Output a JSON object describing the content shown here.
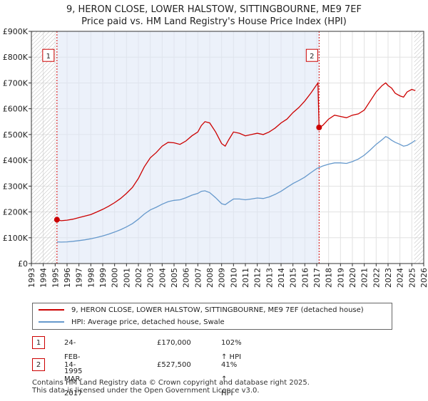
{
  "title_line1": "9, HERON CLOSE, LOWER HALSTOW, SITTINGBOURNE, ME9 7EF",
  "title_line2": "Price paid vs. HM Land Registry's House Price Index (HPI)",
  "colors": {
    "price": "#cc0000",
    "hpi": "#6699cc",
    "shade": "#dde6f5",
    "marker": "#cc0000"
  },
  "legend": {
    "price_label": "9, HERON CLOSE, LOWER HALSTOW, SITTINGBOURNE, ME9 7EF (detached house)",
    "hpi_label": "HPI: Average price, detached house, Swale"
  },
  "sales": [
    {
      "num": "1",
      "date": "24-FEB-1995",
      "price": "£170,000",
      "hpi": "102% ↑ HPI"
    },
    {
      "num": "2",
      "date": "14-MAR-2017",
      "price": "£527,500",
      "hpi": "41% ↑ HPI"
    }
  ],
  "footer_line1": "Contains HM Land Registry data © Crown copyright and database right 2025.",
  "footer_line2": "This data is licensed under the Open Government Licence v3.0.",
  "chart_data": {
    "type": "line",
    "title": "Price paid vs. HM Land Registry's House Price Index (HPI)",
    "xlim": [
      1993,
      2026
    ],
    "ylim": [
      0,
      900000
    ],
    "x_ticks": [
      "1993",
      "1994",
      "1995",
      "1996",
      "1997",
      "1998",
      "1999",
      "2000",
      "2001",
      "2002",
      "2003",
      "2004",
      "2005",
      "2006",
      "2007",
      "2008",
      "2009",
      "2010",
      "2011",
      "2012",
      "2013",
      "2014",
      "2015",
      "2016",
      "2017",
      "2018",
      "2019",
      "2020",
      "2021",
      "2022",
      "2023",
      "2024",
      "2025",
      "2026"
    ],
    "y_ticks": [
      0,
      100000,
      200000,
      300000,
      400000,
      500000,
      600000,
      700000,
      800000,
      900000
    ],
    "y_tick_labels": [
      "£0",
      "£100K",
      "£200K",
      "£300K",
      "£400K",
      "£500K",
      "£600K",
      "£700K",
      "£800K",
      "£900K"
    ],
    "sale_markers": [
      {
        "label": "1",
        "x": 1995.15,
        "y": 170000
      },
      {
        "label": "2",
        "x": 2017.2,
        "y": 527500
      }
    ],
    "series": [
      {
        "name": "9, HERON CLOSE, LOWER HALSTOW, SITTINGBOURNE, ME9 7EF (detached house)",
        "x": [
          1995.15,
          1995.5,
          1996,
          1996.5,
          1997,
          1997.5,
          1998,
          1998.5,
          1999,
          1999.5,
          2000,
          2000.5,
          2001,
          2001.5,
          2002,
          2002.5,
          2003,
          2003.5,
          2004,
          2004.5,
          2005,
          2005.5,
          2006,
          2006.5,
          2007,
          2007.3,
          2007.6,
          2008,
          2008.5,
          2009,
          2009.3,
          2009.6,
          2010,
          2010.5,
          2011,
          2011.5,
          2012,
          2012.5,
          2013,
          2013.5,
          2014,
          2014.5,
          2015,
          2015.5,
          2016,
          2016.5,
          2017.1,
          2017.2,
          2017.5,
          2018,
          2018.5,
          2019,
          2019.5,
          2020,
          2020.5,
          2021,
          2021.5,
          2022,
          2022.5,
          2022.8,
          2023,
          2023.3,
          2023.6,
          2024,
          2024.3,
          2024.6,
          2025,
          2025.3
        ],
        "values": [
          170000,
          166000,
          168000,
          172000,
          178000,
          184000,
          190000,
          200000,
          210000,
          222000,
          236000,
          252000,
          272000,
          295000,
          330000,
          375000,
          410000,
          430000,
          455000,
          470000,
          468000,
          462000,
          475000,
          495000,
          510000,
          535000,
          550000,
          545000,
          510000,
          465000,
          455000,
          480000,
          510000,
          505000,
          495000,
          500000,
          505000,
          500000,
          510000,
          525000,
          545000,
          560000,
          585000,
          605000,
          630000,
          660000,
          700000,
          527500,
          535000,
          560000,
          575000,
          570000,
          565000,
          575000,
          580000,
          595000,
          630000,
          665000,
          690000,
          700000,
          690000,
          680000,
          660000,
          650000,
          645000,
          665000,
          675000,
          670000
        ]
      },
      {
        "name": "HPI: Average price, detached house, Swale",
        "x": [
          1995.15,
          1995.5,
          1996,
          1996.5,
          1997,
          1997.5,
          1998,
          1998.5,
          1999,
          1999.5,
          2000,
          2000.5,
          2001,
          2001.5,
          2002,
          2002.5,
          2003,
          2003.5,
          2004,
          2004.5,
          2005,
          2005.5,
          2006,
          2006.5,
          2007,
          2007.3,
          2007.6,
          2008,
          2008.5,
          2009,
          2009.3,
          2009.6,
          2010,
          2010.5,
          2011,
          2011.5,
          2012,
          2012.5,
          2013,
          2013.5,
          2014,
          2014.5,
          2015,
          2015.5,
          2016,
          2016.5,
          2017,
          2017.5,
          2018,
          2018.5,
          2019,
          2019.5,
          2020,
          2020.5,
          2021,
          2021.5,
          2022,
          2022.5,
          2022.8,
          2023,
          2023.3,
          2023.6,
          2024,
          2024.3,
          2024.6,
          2025,
          2025.3
        ],
        "values": [
          84000,
          83000,
          84000,
          86000,
          89000,
          92000,
          96000,
          101000,
          107000,
          114000,
          122000,
          131000,
          142000,
          155000,
          172000,
          192000,
          208000,
          218000,
          230000,
          240000,
          245000,
          247000,
          255000,
          265000,
          272000,
          280000,
          282000,
          275000,
          255000,
          232000,
          228000,
          238000,
          250000,
          250000,
          247000,
          250000,
          254000,
          252000,
          258000,
          268000,
          280000,
          295000,
          310000,
          322000,
          335000,
          352000,
          368000,
          378000,
          385000,
          390000,
          390000,
          388000,
          395000,
          405000,
          420000,
          440000,
          462000,
          480000,
          492000,
          488000,
          478000,
          470000,
          462000,
          455000,
          458000,
          468000,
          478000
        ]
      }
    ]
  }
}
